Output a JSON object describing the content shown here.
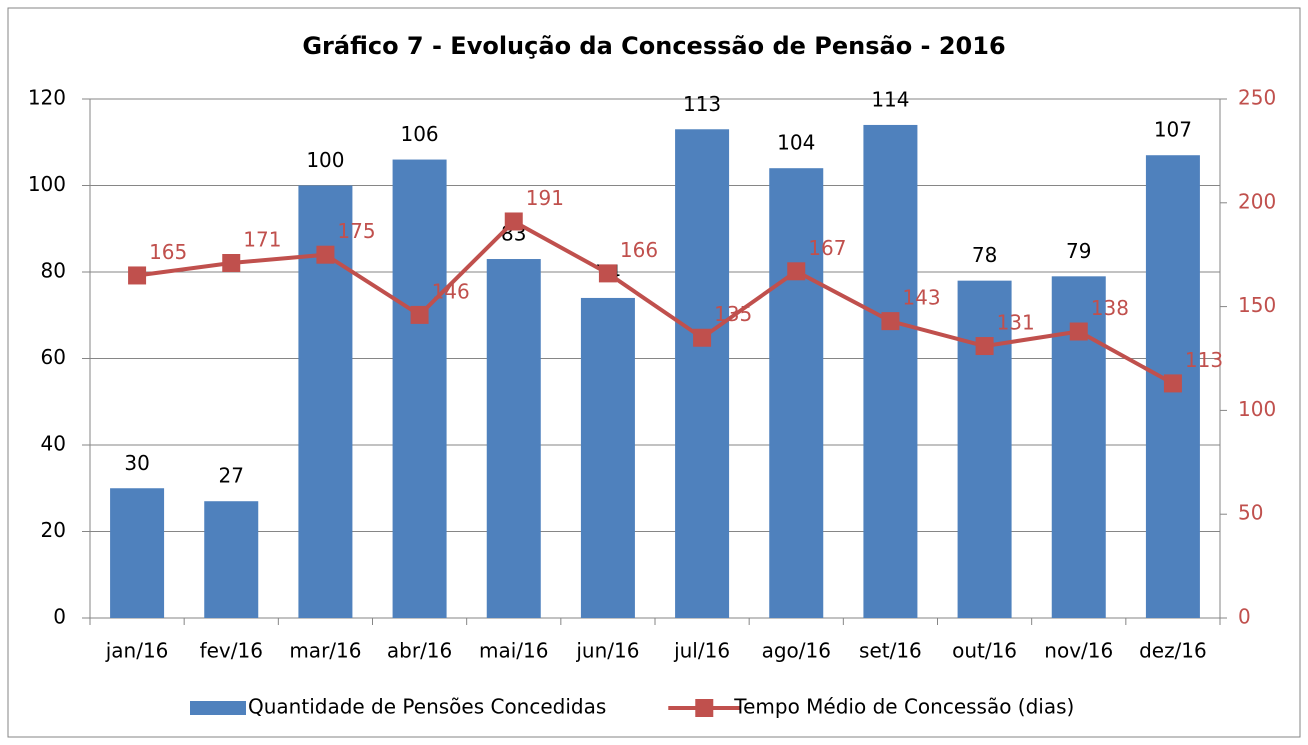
{
  "chart_data": {
    "type": "bar",
    "title": "Gráfico 7 - Evolução da Concessão de Pensão - 2016",
    "categories": [
      "jan/16",
      "fev/16",
      "mar/16",
      "abr/16",
      "mai/16",
      "jun/16",
      "jul/16",
      "ago/16",
      "set/16",
      "out/16",
      "nov/16",
      "dez/16"
    ],
    "series": [
      {
        "name": "Quantidade de Pensões Concedidas",
        "type": "bar",
        "color": "#4f81bd",
        "values": [
          30,
          27,
          100,
          106,
          83,
          74,
          113,
          104,
          114,
          78,
          79,
          107
        ]
      },
      {
        "name": "Tempo Médio de Concessão (dias)",
        "type": "line",
        "axis": "y2",
        "color": "#c0504d",
        "values": [
          165,
          171,
          175,
          146,
          191,
          166,
          135,
          167,
          143,
          131,
          138,
          113
        ]
      }
    ],
    "ylim": [
      0,
      120
    ],
    "yticks": [
      0,
      20,
      40,
      60,
      80,
      100,
      120
    ],
    "y2lim": [
      0,
      250
    ],
    "y2ticks": [
      0,
      50,
      100,
      150,
      200,
      250
    ],
    "grid": true,
    "legend": "bottom"
  }
}
